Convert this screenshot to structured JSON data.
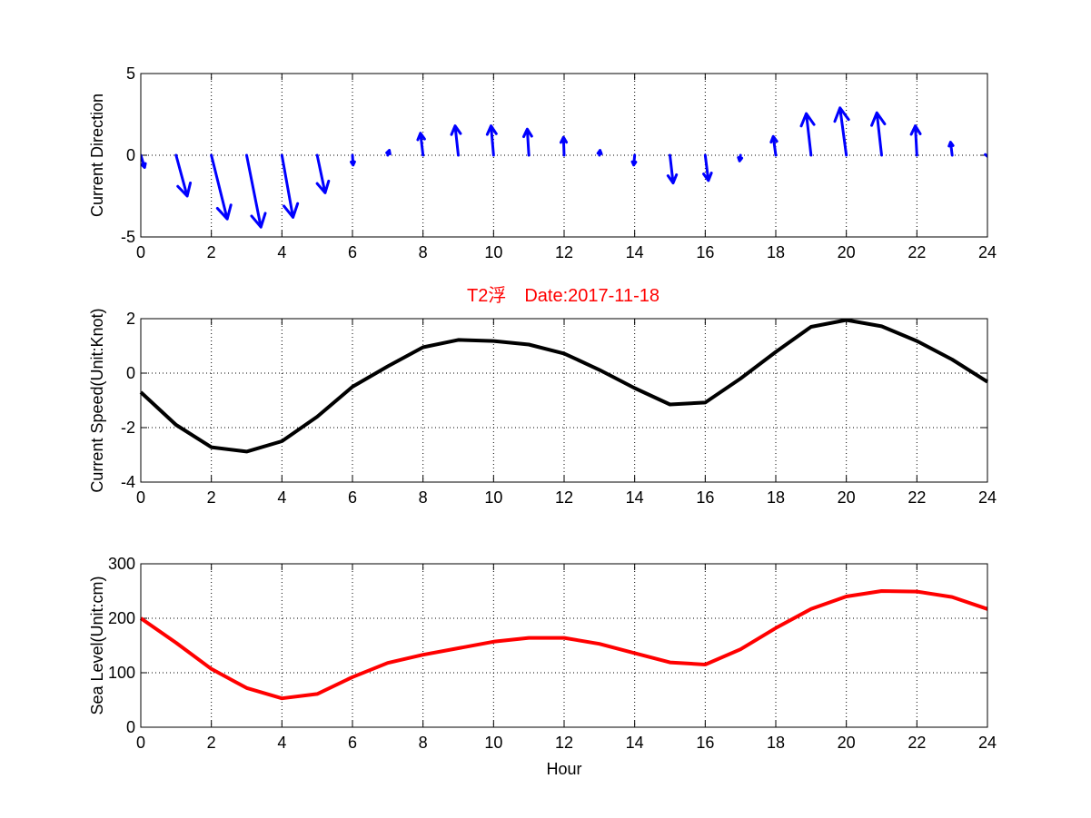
{
  "figure": {
    "title": "T2浮　Date:2017-11-18",
    "title_color": "#ff0000"
  },
  "chart_data": [
    {
      "type": "quiver",
      "ylabel": "Current Direction",
      "xlabel": "",
      "xlim": [
        0,
        24
      ],
      "ylim": [
        -5,
        5
      ],
      "xticks": [
        0,
        2,
        4,
        6,
        8,
        10,
        12,
        14,
        16,
        18,
        20,
        22,
        24
      ],
      "yticks": [
        -5,
        0,
        5
      ],
      "grid": true,
      "color": "#0000ff",
      "x": [
        0,
        1,
        2,
        3,
        4,
        5,
        6,
        7,
        8,
        9,
        10,
        11,
        12,
        13,
        14,
        15,
        16,
        17,
        18,
        19,
        20,
        21,
        22,
        23,
        24
      ],
      "u": [
        0.12,
        0.35,
        0.5,
        0.45,
        0.35,
        0.25,
        0.02,
        0.05,
        -0.08,
        -0.1,
        -0.08,
        -0.05,
        -0.02,
        0.02,
        -0.03,
        0.1,
        0.1,
        -0.03,
        -0.08,
        -0.15,
        -0.2,
        -0.15,
        -0.05,
        -0.05,
        0.02
      ],
      "v": [
        -0.75,
        -2.5,
        -3.9,
        -4.4,
        -3.8,
        -2.3,
        -0.6,
        0.3,
        1.35,
        1.8,
        1.8,
        1.6,
        1.1,
        0.3,
        -0.6,
        -1.7,
        -1.55,
        -0.35,
        1.15,
        2.55,
        2.9,
        2.6,
        1.8,
        0.8,
        -0.1
      ]
    },
    {
      "type": "line",
      "ylabel": "Current Speed(Unit:Knot)",
      "xlabel": "",
      "xlim": [
        0,
        24
      ],
      "ylim": [
        -4,
        2
      ],
      "xticks": [
        0,
        2,
        4,
        6,
        8,
        10,
        12,
        14,
        16,
        18,
        20,
        22,
        24
      ],
      "yticks": [
        -4,
        -2,
        0,
        2
      ],
      "grid": true,
      "series": [
        {
          "color": "#000000",
          "x": [
            0,
            1,
            2,
            3,
            4,
            5,
            6,
            7,
            8,
            9,
            10,
            11,
            12,
            13,
            14,
            15,
            16,
            17,
            18,
            19,
            20,
            21,
            22,
            23,
            24
          ],
          "y": [
            -0.7,
            -1.9,
            -2.72,
            -2.88,
            -2.5,
            -1.6,
            -0.5,
            0.25,
            0.95,
            1.22,
            1.18,
            1.05,
            0.72,
            0.12,
            -0.55,
            -1.15,
            -1.08,
            -0.2,
            0.78,
            1.7,
            1.95,
            1.72,
            1.18,
            0.5,
            -0.32
          ]
        }
      ]
    },
    {
      "type": "line",
      "ylabel": "Sea Level(Unit:cm)",
      "xlabel": "Hour",
      "xlim": [
        0,
        24
      ],
      "ylim": [
        0,
        300
      ],
      "xticks": [
        0,
        2,
        4,
        6,
        8,
        10,
        12,
        14,
        16,
        18,
        20,
        22,
        24
      ],
      "yticks": [
        0,
        100,
        200,
        300
      ],
      "grid": true,
      "series": [
        {
          "color": "#ff0000",
          "x": [
            0,
            1,
            2,
            3,
            4,
            5,
            6,
            7,
            8,
            9,
            10,
            11,
            12,
            13,
            14,
            15,
            16,
            17,
            18,
            19,
            20,
            21,
            22,
            23,
            24
          ],
          "y": [
            200,
            155,
            107,
            72,
            53,
            61,
            92,
            118,
            133,
            145,
            157,
            164,
            164,
            153,
            136,
            119,
            115,
            143,
            182,
            217,
            240,
            250,
            249,
            239,
            217
          ]
        }
      ]
    }
  ]
}
